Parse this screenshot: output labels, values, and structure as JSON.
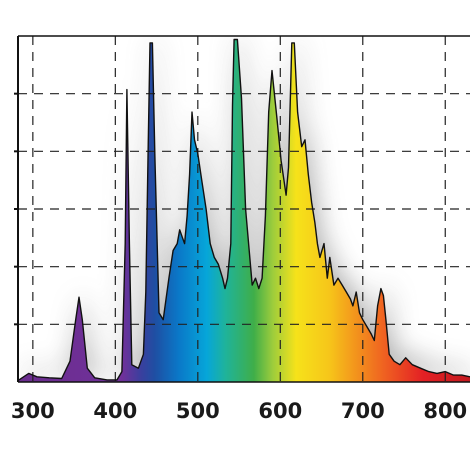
{
  "chart_data": {
    "type": "area",
    "title": "",
    "xlabel": "",
    "ylabel": "",
    "xlim": [
      282,
      830
    ],
    "ylim": [
      0,
      100
    ],
    "x_ticks": [
      "300",
      "400",
      "500",
      "600",
      "700",
      "800"
    ],
    "x_tick_values": [
      300,
      400,
      500,
      600,
      700,
      800
    ],
    "grid": "dashed, vertical every 100 nm, horizontal every 16.7%",
    "legend": "none",
    "fill": "visible-spectrum gradient (violet to red) under the curve, soft grey glow above",
    "colors": {
      "violet": "#6a2c8c",
      "blue": "#1e4fa3",
      "cyan": "#06a6d9",
      "green": "#3fae49",
      "yellow": "#f6e21a",
      "orange": "#f39a1c",
      "red": "#e32024",
      "grid": "#222222",
      "outline": "#111111"
    },
    "series": [
      {
        "points": [
          [
            282,
            0.4
          ],
          [
            295,
            2.5
          ],
          [
            305,
            1.5
          ],
          [
            320,
            1.2
          ],
          [
            335,
            1
          ],
          [
            345,
            6
          ],
          [
            352,
            18
          ],
          [
            356,
            24.5
          ],
          [
            360,
            18
          ],
          [
            366,
            4
          ],
          [
            375,
            1.2
          ],
          [
            390,
            0.6
          ],
          [
            402,
            0.6
          ],
          [
            408,
            3
          ],
          [
            412,
            40
          ],
          [
            414,
            84.5
          ],
          [
            417,
            40
          ],
          [
            420,
            5
          ],
          [
            428,
            4
          ],
          [
            434,
            8
          ],
          [
            437,
            26
          ],
          [
            440,
            70
          ],
          [
            442,
            98
          ],
          [
            445,
            98
          ],
          [
            448,
            65
          ],
          [
            453,
            20
          ],
          [
            458,
            18
          ],
          [
            465,
            30
          ],
          [
            470,
            38
          ],
          [
            475,
            40
          ],
          [
            478,
            44
          ],
          [
            481,
            42
          ],
          [
            484,
            40
          ],
          [
            487,
            48
          ],
          [
            490,
            60
          ],
          [
            493,
            78
          ],
          [
            496,
            70
          ],
          [
            500,
            66
          ],
          [
            505,
            58
          ],
          [
            510,
            50
          ],
          [
            515,
            40
          ],
          [
            520,
            36
          ],
          [
            525,
            34
          ],
          [
            530,
            30
          ],
          [
            533,
            27
          ],
          [
            536,
            30
          ],
          [
            540,
            40
          ],
          [
            542,
            80
          ],
          [
            544,
            99
          ],
          [
            548,
            99
          ],
          [
            553,
            82
          ],
          [
            558,
            50
          ],
          [
            563,
            36
          ],
          [
            566,
            28
          ],
          [
            570,
            30
          ],
          [
            574,
            27
          ],
          [
            578,
            30
          ],
          [
            582,
            48
          ],
          [
            586,
            78
          ],
          [
            590,
            90
          ],
          [
            596,
            76
          ],
          [
            601,
            64
          ],
          [
            607,
            54
          ],
          [
            610,
            62
          ],
          [
            614,
            98
          ],
          [
            617,
            98
          ],
          [
            621,
            78
          ],
          [
            626,
            68
          ],
          [
            630,
            70
          ],
          [
            634,
            60
          ],
          [
            638,
            52
          ],
          [
            642,
            46
          ],
          [
            645,
            40
          ],
          [
            648,
            36
          ],
          [
            653,
            40
          ],
          [
            657,
            30
          ],
          [
            660,
            36
          ],
          [
            665,
            28
          ],
          [
            670,
            30
          ],
          [
            675,
            28
          ],
          [
            680,
            26
          ],
          [
            685,
            24
          ],
          [
            688,
            22
          ],
          [
            692,
            26
          ],
          [
            696,
            20
          ],
          [
            700,
            18
          ],
          [
            705,
            16
          ],
          [
            710,
            14
          ],
          [
            714,
            12
          ],
          [
            718,
            22
          ],
          [
            722,
            27
          ],
          [
            725,
            25
          ],
          [
            728,
            18
          ],
          [
            732,
            8
          ],
          [
            738,
            6
          ],
          [
            745,
            5
          ],
          [
            752,
            7
          ],
          [
            760,
            5
          ],
          [
            770,
            4
          ],
          [
            780,
            3
          ],
          [
            790,
            2.5
          ],
          [
            800,
            3
          ],
          [
            810,
            2
          ],
          [
            820,
            2
          ],
          [
            830,
            1.5
          ]
        ]
      }
    ]
  }
}
